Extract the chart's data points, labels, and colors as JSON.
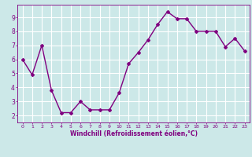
{
  "x": [
    0,
    1,
    2,
    3,
    4,
    5,
    6,
    7,
    8,
    9,
    10,
    11,
    12,
    13,
    14,
    15,
    16,
    17,
    18,
    19,
    20,
    21,
    22,
    23
  ],
  "y": [
    6.0,
    4.9,
    7.0,
    3.8,
    2.2,
    2.2,
    3.0,
    2.4,
    2.4,
    2.4,
    3.6,
    5.7,
    6.5,
    7.4,
    8.5,
    9.4,
    8.9,
    8.9,
    8.0,
    8.0,
    8.0,
    6.9,
    7.5,
    6.6
  ],
  "line_color": "#800080",
  "marker": "D",
  "marker_size": 2.0,
  "line_width": 1.0,
  "bg_color": "#cce8e8",
  "grid_color": "#ffffff",
  "xlabel": "Windchill (Refroidissement éolien,°C)",
  "xlabel_color": "#800080",
  "tick_color": "#800080",
  "xlim": [
    -0.5,
    23.5
  ],
  "ylim": [
    1.5,
    9.9
  ],
  "yticks": [
    2,
    3,
    4,
    5,
    6,
    7,
    8,
    9
  ],
  "xticks": [
    0,
    1,
    2,
    3,
    4,
    5,
    6,
    7,
    8,
    9,
    10,
    11,
    12,
    13,
    14,
    15,
    16,
    17,
    18,
    19,
    20,
    21,
    22,
    23
  ],
  "xtick_labels": [
    "0",
    "1",
    "2",
    "3",
    "4",
    "5",
    "6",
    "7",
    "8",
    "9",
    "10",
    "11",
    "12",
    "13",
    "14",
    "15",
    "16",
    "17",
    "18",
    "19",
    "20",
    "21",
    "22",
    "23"
  ]
}
